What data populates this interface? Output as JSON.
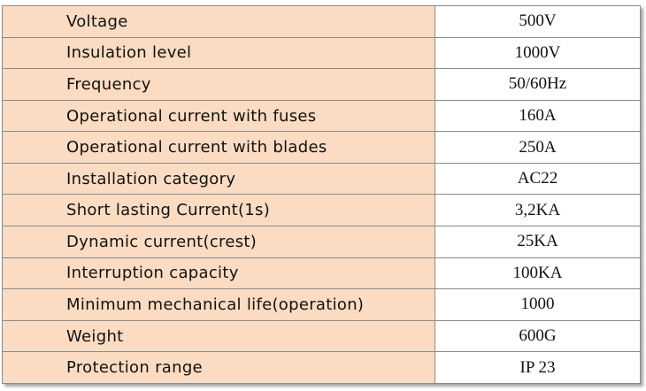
{
  "specs": [
    {
      "label": "Voltage",
      "value": "500V"
    },
    {
      "label": "Insulation level",
      "value": "1000V"
    },
    {
      "label": "Frequency",
      "value": "50/60Hz"
    },
    {
      "label": "Operational current with fuses",
      "value": "160A"
    },
    {
      "label": "Operational current with blades",
      "value": "250A"
    },
    {
      "label": "Installation category",
      "value": "AC22"
    },
    {
      "label": "Short lasting Current(1s)",
      "value": "3,2KA"
    },
    {
      "label": "Dynamic current(crest)",
      "value": "25KA"
    },
    {
      "label": "Interruption capacity",
      "value": "100KA"
    },
    {
      "label": "Minimum mechanical life(operation)",
      "value": "1000"
    },
    {
      "label": "Weight",
      "value": "600G"
    },
    {
      "label": "Protection range",
      "value": "IP 23"
    }
  ],
  "colors": {
    "label_background": "#fbdcc2",
    "value_background": "#ffffff",
    "border": "#8a8a8a"
  }
}
